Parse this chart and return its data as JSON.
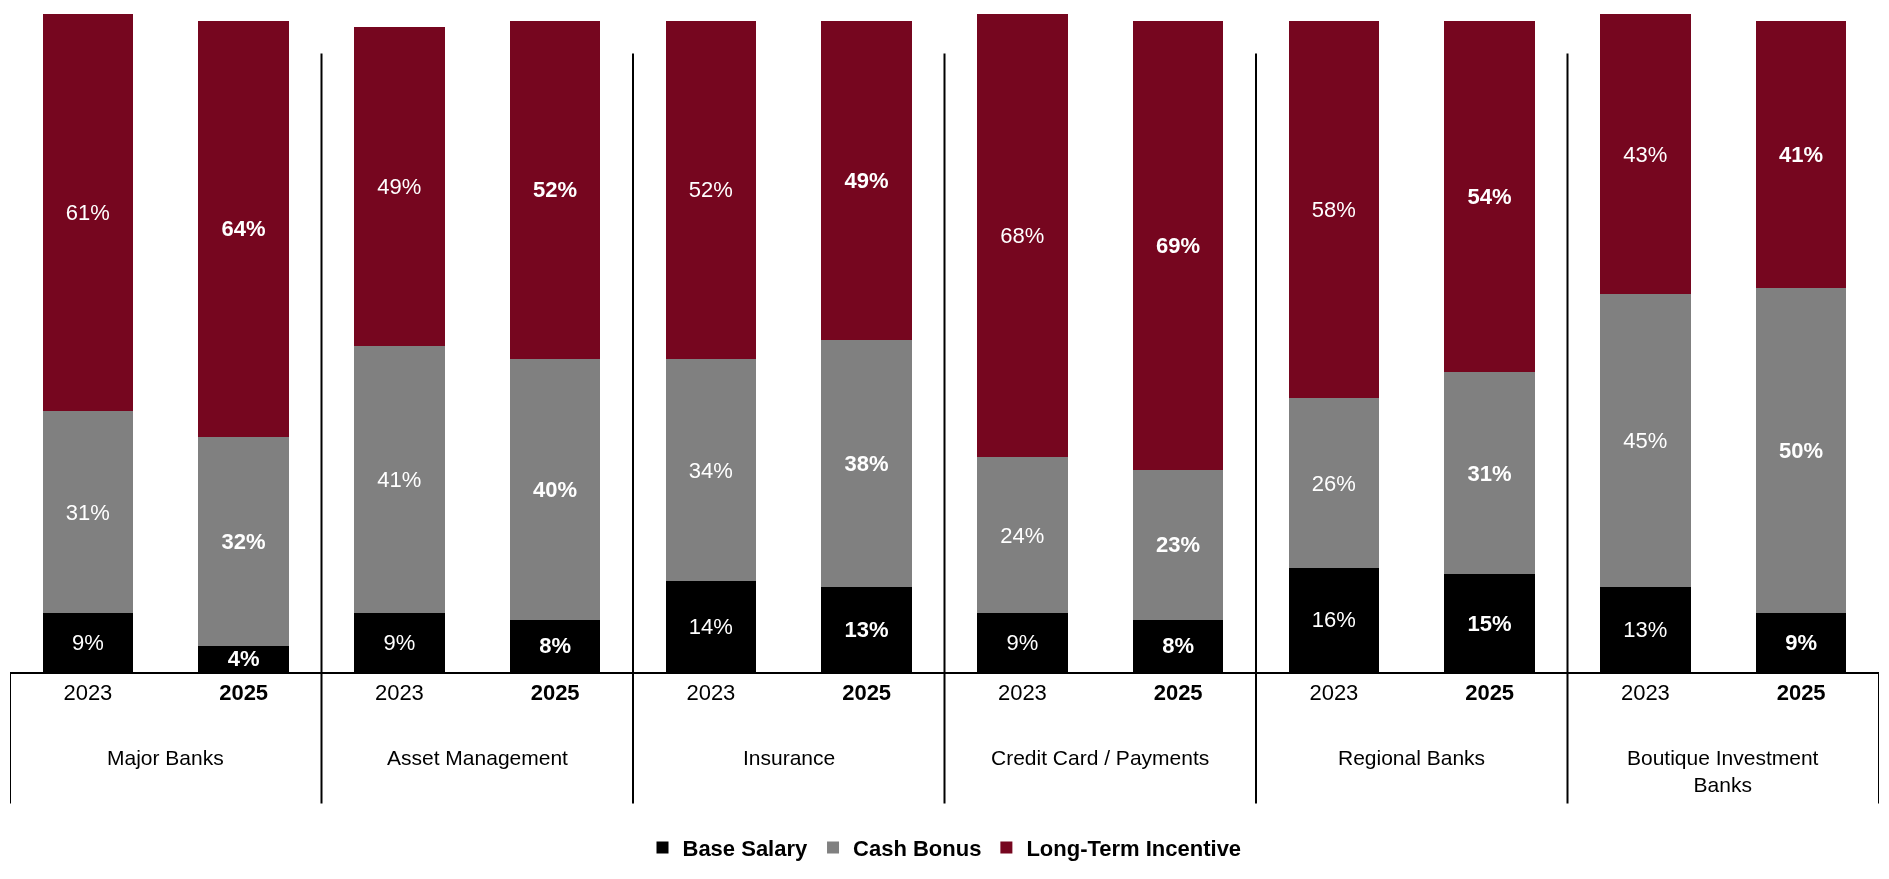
{
  "chart_data": {
    "type": "bar",
    "stacked": true,
    "categories": [
      "2023",
      "2025",
      "2023",
      "2025",
      "2023",
      "2025",
      "2023",
      "2025",
      "2023",
      "2025",
      "2023",
      "2025"
    ],
    "series": [
      {
        "name": "Base Salary",
        "color": "#000000",
        "values": [
          9,
          4,
          9,
          8,
          14,
          13,
          9,
          8,
          16,
          15,
          13,
          9
        ],
        "value_labels": [
          "9%",
          "4%",
          "9%",
          "8%",
          "14%",
          "13%",
          "9%",
          "8%",
          "16%",
          "15%",
          "13%",
          "9%"
        ]
      },
      {
        "name": "Cash Bonus",
        "color": "#808080",
        "values": [
          31,
          32,
          41,
          40,
          34,
          38,
          24,
          23,
          26,
          31,
          45,
          50
        ],
        "value_labels": [
          "31%",
          "32%",
          "41%",
          "40%",
          "34%",
          "38%",
          "24%",
          "23%",
          "26%",
          "31%",
          "45%",
          "50%"
        ]
      },
      {
        "name": "Long-Term Incentive",
        "color": "#76061f",
        "values": [
          61,
          64,
          49,
          52,
          52,
          49,
          68,
          69,
          58,
          54,
          43,
          41
        ],
        "value_labels": [
          "61%",
          "64%",
          "49%",
          "52%",
          "52%",
          "49%",
          "68%",
          "69%",
          "58%",
          "54%",
          "43%",
          "41%"
        ]
      }
    ],
    "annotations": [
      "Major Banks",
      "Asset Management",
      "Insurance",
      "Credit Card / Payments",
      "Regional Banks",
      "Boutique Investment Banks"
    ],
    "ylim": [
      0,
      101
    ],
    "legend": "bottom",
    "tick_labels": "x"
  }
}
